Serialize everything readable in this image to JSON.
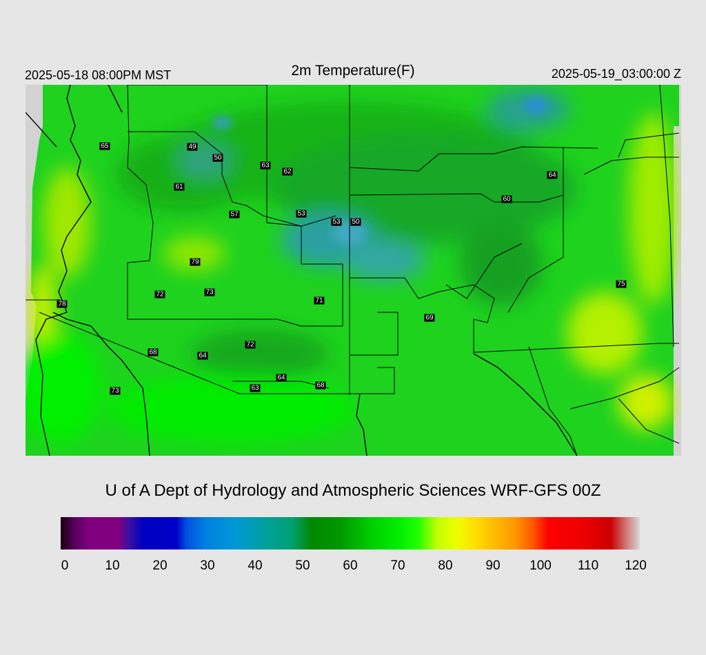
{
  "header": {
    "valid_local": "2025-05-18 08:00PM MST",
    "title": "2m Temperature(F)",
    "valid_utc": "2025-05-19_03:00:00 Z"
  },
  "credit": "U of A Dept of Hydrology and Atmospheric Sciences WRF-GFS 00Z",
  "colorbar": {
    "min": 0,
    "max": 120,
    "unit": "F",
    "ticks": [
      "0",
      "10",
      "20",
      "30",
      "40",
      "50",
      "60",
      "70",
      "80",
      "90",
      "100",
      "110",
      "120"
    ],
    "stops": [
      {
        "v": 0,
        "c": "#1a0010"
      },
      {
        "v": 3,
        "c": "#5a0060"
      },
      {
        "v": 6,
        "c": "#800080"
      },
      {
        "v": 12,
        "c": "#800080"
      },
      {
        "v": 14,
        "c": "#4010a0"
      },
      {
        "v": 17,
        "c": "#0000c0"
      },
      {
        "v": 24,
        "c": "#0000c8"
      },
      {
        "v": 26,
        "c": "#0050e0"
      },
      {
        "v": 30,
        "c": "#0080e0"
      },
      {
        "v": 36,
        "c": "#0098d8"
      },
      {
        "v": 42,
        "c": "#00a0a0"
      },
      {
        "v": 48,
        "c": "#00a070"
      },
      {
        "v": 52,
        "c": "#008800"
      },
      {
        "v": 58,
        "c": "#009800"
      },
      {
        "v": 64,
        "c": "#00cc00"
      },
      {
        "v": 70,
        "c": "#00ee00"
      },
      {
        "v": 74,
        "c": "#20ff00"
      },
      {
        "v": 78,
        "c": "#c0ff00"
      },
      {
        "v": 82,
        "c": "#eeff00"
      },
      {
        "v": 86,
        "c": "#ffdd00"
      },
      {
        "v": 90,
        "c": "#ffbb00"
      },
      {
        "v": 94,
        "c": "#ff9900"
      },
      {
        "v": 98,
        "c": "#ff5500"
      },
      {
        "v": 101,
        "c": "#ff0000"
      },
      {
        "v": 108,
        "c": "#ee0000"
      },
      {
        "v": 114,
        "c": "#cc0000"
      },
      {
        "v": 117,
        "c": "#d07070"
      },
      {
        "v": 120,
        "c": "#d8d8d8"
      }
    ]
  },
  "stations": [
    "65",
    "49",
    "50",
    "63",
    "62",
    "61",
    "57",
    "53",
    "53",
    "50",
    "64",
    "60",
    "79",
    "72",
    "73",
    "71",
    "78",
    "75",
    "69",
    "68",
    "64",
    "72",
    "64",
    "63",
    "68",
    "73"
  ],
  "colors": {
    "background": "#e6e6e6",
    "dominant_field": "#1ed21e",
    "cold_field": "#2aa0a0",
    "warm_field": "#c8f000",
    "boundary": "#000000"
  }
}
